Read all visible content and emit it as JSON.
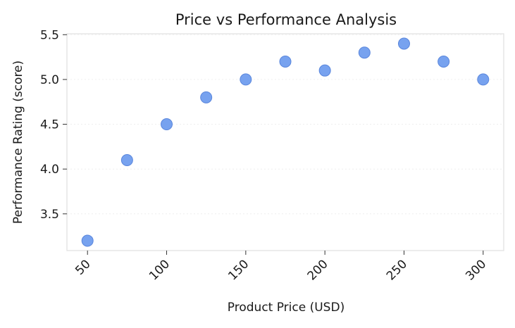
{
  "chart_data": {
    "type": "scatter",
    "title": "Price vs Performance Analysis",
    "xlabel": "Product Price (USD)",
    "ylabel": "Performance Rating (score)",
    "xlim": [
      37,
      313
    ],
    "ylim": [
      3.09,
      5.51
    ],
    "xticks": [
      50,
      100,
      150,
      200,
      250,
      300
    ],
    "yticks": [
      3.5,
      4.0,
      4.5,
      5.0,
      5.5
    ],
    "ytick_labels": [
      "3.5",
      "4.0",
      "4.5",
      "5.0",
      "5.5"
    ],
    "grid": true,
    "legend": "none",
    "marker_color": "#6495ED",
    "points": [
      {
        "x": 50,
        "y": 3.2
      },
      {
        "x": 75,
        "y": 4.1
      },
      {
        "x": 100,
        "y": 4.5
      },
      {
        "x": 125,
        "y": 4.8
      },
      {
        "x": 150,
        "y": 5.0
      },
      {
        "x": 175,
        "y": 5.2
      },
      {
        "x": 200,
        "y": 5.1
      },
      {
        "x": 225,
        "y": 5.3
      },
      {
        "x": 250,
        "y": 5.4
      },
      {
        "x": 275,
        "y": 5.2
      },
      {
        "x": 300,
        "y": 5.0
      }
    ]
  }
}
